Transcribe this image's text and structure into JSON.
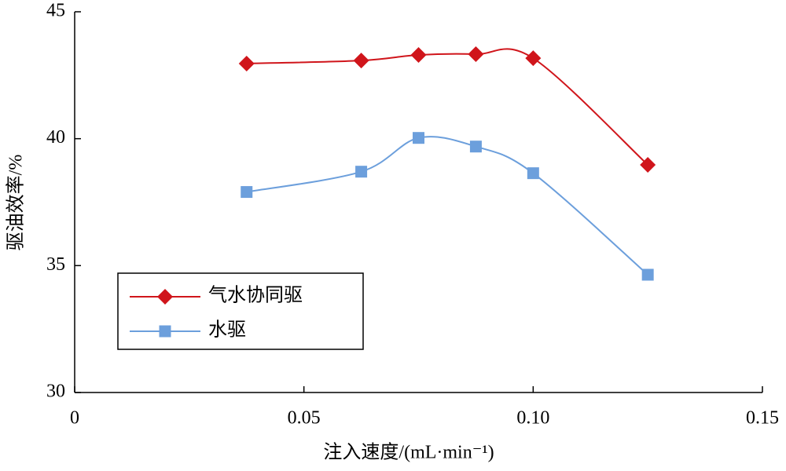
{
  "chart_data": {
    "type": "line",
    "x_label": "注入速度/(mL·min⁻¹)",
    "y_label": "驱油效率/%",
    "x": [
      0.0375,
      0.0625,
      0.075,
      0.0875,
      0.1,
      0.125
    ],
    "series": [
      {
        "name": "气水协同驱",
        "color": "#d0151b",
        "marker": "diamond",
        "values": [
          42.96,
          43.08,
          43.3,
          43.33,
          43.17,
          38.97
        ]
      },
      {
        "name": "水驱",
        "color": "#6c9fdc",
        "marker": "square",
        "values": [
          37.9,
          38.7,
          40.03,
          39.69,
          38.64,
          34.64
        ]
      }
    ],
    "xlim": [
      0,
      0.15
    ],
    "xticks": [
      0,
      0.05,
      {
        "value": 0.1,
        "label": "0.10"
      },
      0.15
    ],
    "ylim": [
      30,
      45
    ],
    "yticks": [
      30,
      35,
      40,
      45
    ],
    "smooth": true,
    "legend": "lower-left"
  }
}
